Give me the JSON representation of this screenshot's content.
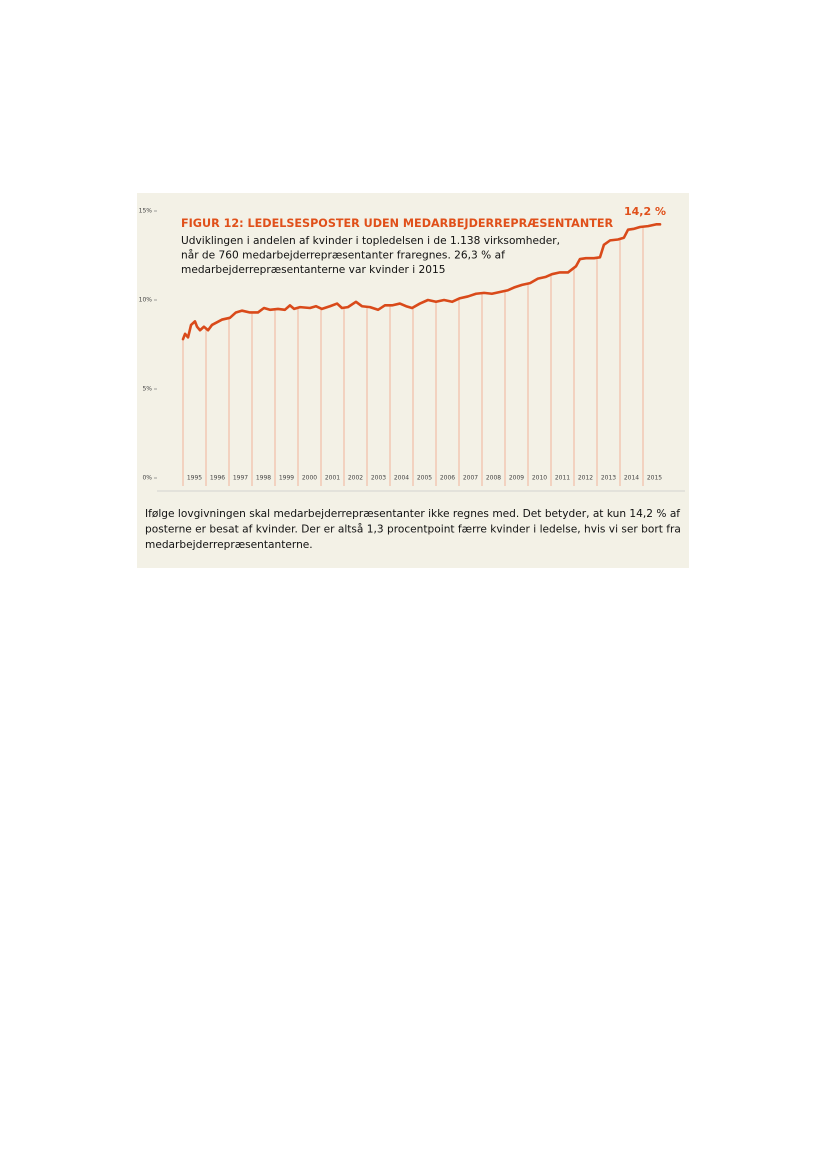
{
  "chart_data": {
    "type": "line",
    "title": "FIGUR 12: LEDELSESPOSTER UDEN MEDARBEJDERREPRÆSENTANTER",
    "subtitle": [
      "Udviklingen i andelen af kvinder i topledelsen i de 1.138 virksomheder,",
      "når de 760 medarbejderrepræsentanter fraregnes. 26,3 % af",
      "medarbejderrepræsentanterne var kvinder i 2015"
    ],
    "annotation": "14,2 %",
    "x": [
      1994.5,
      1994.59,
      1994.72,
      1994.85,
      1995.02,
      1995.11,
      1995.24,
      1995.41,
      1995.59,
      1995.76,
      1996.2,
      1996.54,
      1996.8,
      1997.07,
      1997.41,
      1997.76,
      1998.02,
      1998.28,
      1998.63,
      1998.93,
      1999.15,
      1999.33,
      1999.59,
      2000.02,
      2000.28,
      2000.54,
      2000.89,
      2001.2,
      2001.41,
      2001.67,
      2002.02,
      2002.28,
      2002.63,
      2002.98,
      2003.28,
      2003.59,
      2003.93,
      2004.2,
      2004.46,
      2004.8,
      2005.15,
      2005.5,
      2005.85,
      2006.2,
      2006.54,
      2006.89,
      2007.24,
      2007.59,
      2007.93,
      2008.28,
      2008.63,
      2008.89,
      2009.24,
      2009.59,
      2009.93,
      2010.28,
      2010.54,
      2010.89,
      2011.24,
      2011.59,
      2011.76,
      2012.02,
      2012.37,
      2012.63,
      2012.8,
      2013.07,
      2013.41,
      2013.67,
      2013.85,
      2014.11,
      2014.37,
      2014.72,
      2015.07,
      2015.24
    ],
    "series": [
      {
        "color": "#d94a1a",
        "values": [
          7.8,
          8.1,
          7.9,
          8.6,
          8.8,
          8.5,
          8.3,
          8.5,
          8.3,
          8.6,
          8.9,
          9.0,
          9.3,
          9.4,
          9.3,
          9.3,
          9.55,
          9.45,
          9.5,
          9.45,
          9.7,
          9.5,
          9.6,
          9.55,
          9.65,
          9.5,
          9.65,
          9.8,
          9.55,
          9.6,
          9.9,
          9.65,
          9.6,
          9.45,
          9.7,
          9.7,
          9.8,
          9.65,
          9.55,
          9.8,
          10.0,
          9.9,
          10.0,
          9.9,
          10.1,
          10.2,
          10.35,
          10.4,
          10.35,
          10.45,
          10.55,
          10.7,
          10.85,
          10.95,
          11.2,
          11.3,
          11.45,
          11.55,
          11.55,
          11.9,
          12.3,
          12.35,
          12.35,
          12.4,
          13.1,
          13.35,
          13.4,
          13.5,
          13.95,
          14.0,
          14.1,
          14.15,
          14.25,
          14.25
        ]
      }
    ],
    "xlim": [
      1994.5,
      2015.5
    ],
    "xticks": [
      1995,
      1996,
      1997,
      1998,
      1999,
      2000,
      2001,
      2002,
      2003,
      2004,
      2005,
      2006,
      2007,
      2008,
      2009,
      2010,
      2011,
      2012,
      2013,
      2014,
      2015
    ],
    "ylim": [
      0,
      15
    ],
    "yticks": [
      {
        "value": 0,
        "label": "0%"
      },
      {
        "value": 5,
        "label": "5%"
      },
      {
        "value": 10,
        "label": "10%"
      },
      {
        "value": 15,
        "label": "15%"
      }
    ]
  },
  "caption": [
    "Ifølge lovgivningen skal medarbejderrepræsentanter ikke regnes med. Det betyder, at kun 14,2 % af",
    "posterne er besat af kvinder. Der er altså 1,3 procentpoint færre kvinder i ledelse, hvis vi ser bort fra",
    "medarbejderrepræsentanterne."
  ]
}
